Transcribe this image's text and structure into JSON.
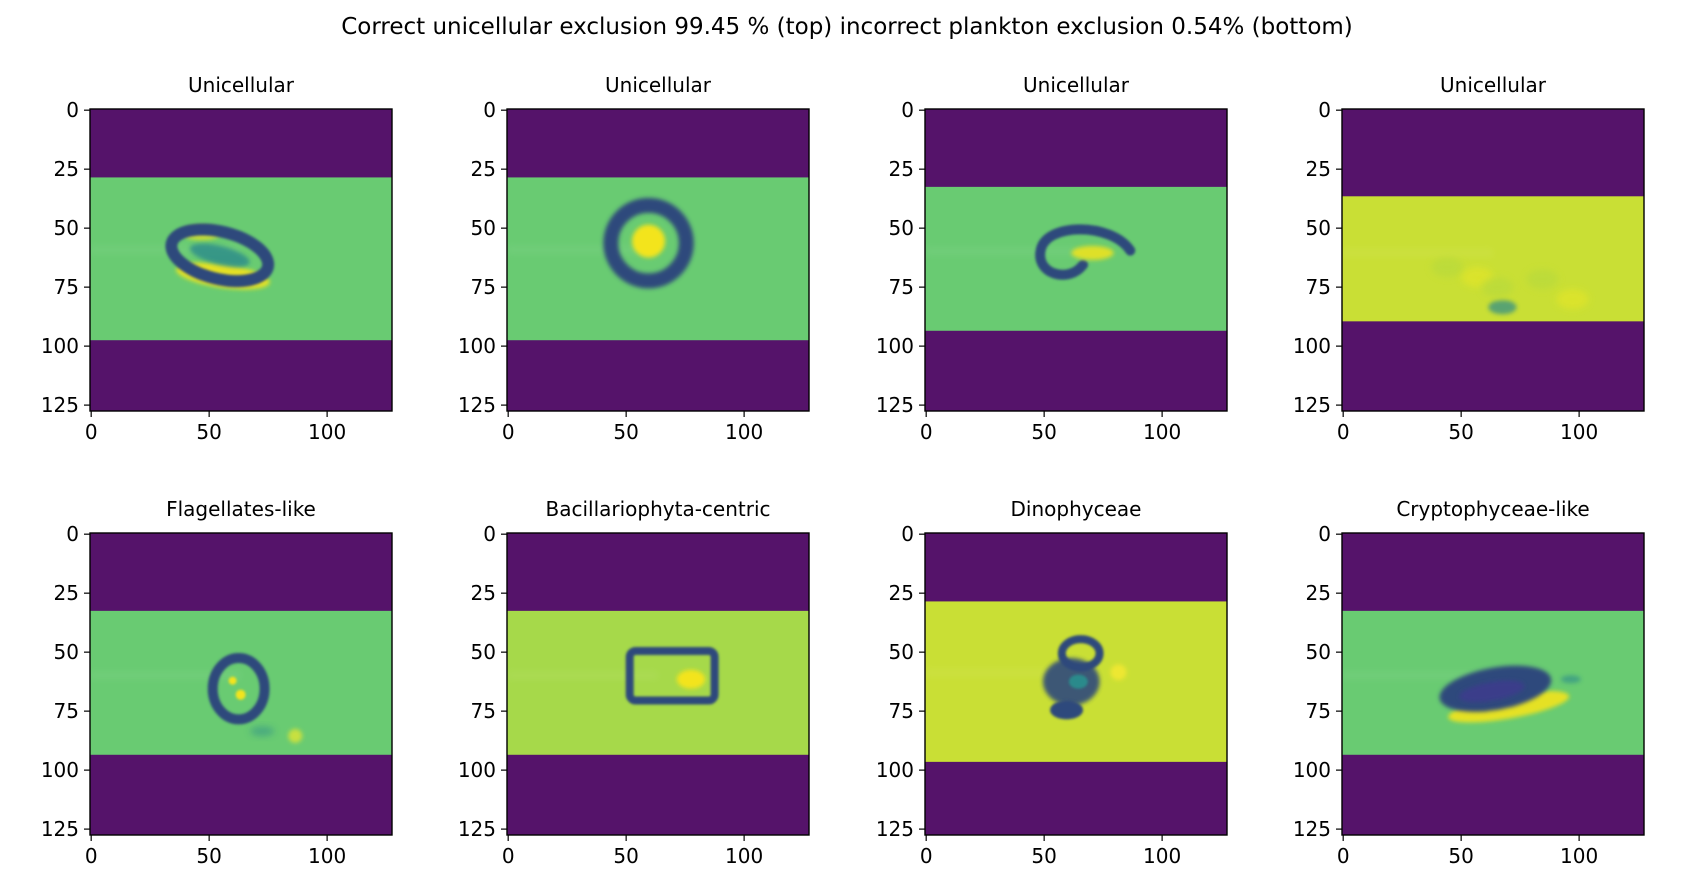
{
  "figure": {
    "suptitle": "Correct unicellular exclusion 99.45 % (top) incorrect plankton exclusion 0.54% (bottom)"
  },
  "colors": {
    "pad": "#55136a",
    "bg_green": "#69cb72",
    "bg_yellowgreen": "#a6d94a",
    "bg_yellow": "#c9df35",
    "dark": "#2f497b",
    "mid": "#2a8a8b",
    "bright": "#f3e41c"
  },
  "chart_data": [
    {
      "type": "heatmap",
      "title": "Unicellular",
      "xlim": [
        0,
        127
      ],
      "ylim": [
        127,
        0
      ],
      "xticks": [
        "0",
        "50",
        "100"
      ],
      "yticks": [
        "0",
        "25",
        "50",
        "75",
        "100",
        "125"
      ],
      "content_rows": [
        29,
        97
      ],
      "background": "bg_green",
      "object": "ellipse-ring-tilted",
      "object_center": [
        55,
        62
      ]
    },
    {
      "type": "heatmap",
      "title": "Unicellular",
      "xlim": [
        0,
        127
      ],
      "ylim": [
        127,
        0
      ],
      "xticks": [
        "0",
        "50",
        "100"
      ],
      "yticks": [
        "0",
        "25",
        "50",
        "75",
        "100",
        "125"
      ],
      "content_rows": [
        29,
        97
      ],
      "background": "bg_green",
      "object": "ring-bright-core",
      "object_center": [
        60,
        56
      ]
    },
    {
      "type": "heatmap",
      "title": "Unicellular",
      "xlim": [
        0,
        127
      ],
      "ylim": [
        127,
        0
      ],
      "xticks": [
        "0",
        "50",
        "100"
      ],
      "yticks": [
        "0",
        "25",
        "50",
        "75",
        "100",
        "125"
      ],
      "content_rows": [
        33,
        93
      ],
      "background": "bg_green",
      "object": "open-ring",
      "object_center": [
        65,
        60
      ]
    },
    {
      "type": "heatmap",
      "title": "Unicellular",
      "xlim": [
        0,
        127
      ],
      "ylim": [
        127,
        0
      ],
      "xticks": [
        "0",
        "50",
        "100"
      ],
      "yticks": [
        "0",
        "25",
        "50",
        "75",
        "100",
        "125"
      ],
      "content_rows": [
        37,
        89
      ],
      "background": "bg_yellow",
      "object": "faint-spot",
      "object_center": [
        68,
        84
      ]
    },
    {
      "type": "heatmap",
      "title": "Flagellates-like",
      "xlim": [
        0,
        127
      ],
      "ylim": [
        127,
        0
      ],
      "xticks": [
        "0",
        "50",
        "100"
      ],
      "yticks": [
        "0",
        "25",
        "50",
        "75",
        "100",
        "125"
      ],
      "content_rows": [
        33,
        93
      ],
      "background": "bg_green",
      "object": "ring-with-dots",
      "object_center": [
        63,
        66
      ]
    },
    {
      "type": "heatmap",
      "title": "Bacillariophyta-centric",
      "xlim": [
        0,
        127
      ],
      "ylim": [
        127,
        0
      ],
      "xticks": [
        "0",
        "50",
        "100"
      ],
      "yticks": [
        "0",
        "25",
        "50",
        "75",
        "100",
        "125"
      ],
      "content_rows": [
        33,
        93
      ],
      "background": "bg_yellowgreen",
      "object": "rectangle-frame",
      "object_center": [
        70,
        60
      ]
    },
    {
      "type": "heatmap",
      "title": "Dinophyceae",
      "xlim": [
        0,
        127
      ],
      "ylim": [
        127,
        0
      ],
      "xticks": [
        "0",
        "50",
        "100"
      ],
      "yticks": [
        "0",
        "25",
        "50",
        "75",
        "100",
        "125"
      ],
      "content_rows": [
        29,
        96
      ],
      "background": "bg_yellow",
      "object": "clustered-blob",
      "object_center": [
        62,
        61
      ]
    },
    {
      "type": "heatmap",
      "title": "Cryptophyceae-like",
      "xlim": [
        0,
        127
      ],
      "ylim": [
        127,
        0
      ],
      "xticks": [
        "0",
        "50",
        "100"
      ],
      "yticks": [
        "0",
        "25",
        "50",
        "75",
        "100",
        "125"
      ],
      "content_rows": [
        33,
        93
      ],
      "background": "bg_green",
      "object": "tilted-ellipse",
      "object_center": [
        65,
        66
      ]
    }
  ]
}
